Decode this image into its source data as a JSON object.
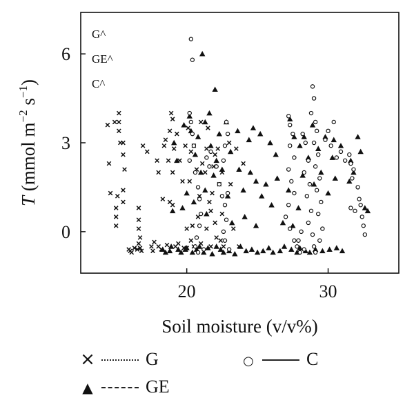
{
  "chart_data": {
    "type": "scatter",
    "xlabel": "Soil moisture (v/v%)",
    "ylabel": "T (mmol m⁻² s⁻¹)",
    "ylabel_italic": "T",
    "ylabel_rest": " (mmol m",
    "ylabel_sup1": "−2",
    "ylabel_mid": " s",
    "ylabel_sup2": "−1",
    "ylabel_end": ")",
    "xlim": [
      12.5,
      35
    ],
    "ylim": [
      -1.4,
      7.4
    ],
    "x_ticks": [
      20,
      30
    ],
    "x_tick_labels": [
      "20",
      "30"
    ],
    "y_ticks": [
      0,
      3,
      6
    ],
    "y_tick_labels": [
      "0",
      "3",
      "6"
    ],
    "grid": false,
    "legend_position": "bottom",
    "annotations": [
      "G^",
      "GE^",
      "C^"
    ],
    "series": [
      {
        "name": "G",
        "marker": "x",
        "line_style": "dotted",
        "points": [
          [
            14.4,
            3.6
          ],
          [
            14.5,
            2.3
          ],
          [
            14.6,
            1.3
          ],
          [
            14.9,
            3.7
          ],
          [
            15.0,
            0.8
          ],
          [
            15.0,
            0.5
          ],
          [
            15.0,
            0.2
          ],
          [
            15.1,
            1.2
          ],
          [
            15.2,
            4.0
          ],
          [
            15.2,
            3.7
          ],
          [
            15.2,
            3.4
          ],
          [
            15.3,
            3.0
          ],
          [
            15.5,
            3.0
          ],
          [
            15.5,
            2.6
          ],
          [
            15.6,
            2.1
          ],
          [
            15.5,
            1.4
          ],
          [
            15.5,
            1.0
          ],
          [
            15.9,
            -0.6
          ],
          [
            16.0,
            -0.65
          ],
          [
            16.1,
            -0.7
          ],
          [
            16.3,
            -0.55
          ],
          [
            16.5,
            -0.6
          ],
          [
            16.6,
            0.8
          ],
          [
            16.6,
            0.4
          ],
          [
            16.6,
            0.1
          ],
          [
            16.7,
            -0.2
          ],
          [
            16.6,
            -0.4
          ],
          [
            16.7,
            -0.55
          ],
          [
            16.8,
            -0.65
          ],
          [
            16.9,
            2.9
          ],
          [
            17.2,
            2.7
          ],
          [
            17.5,
            -0.5
          ],
          [
            17.6,
            -0.65
          ],
          [
            17.7,
            -0.35
          ],
          [
            17.9,
            2.4
          ],
          [
            18.0,
            2.0
          ],
          [
            18.0,
            -0.5
          ],
          [
            18.2,
            -0.6
          ],
          [
            18.3,
            1.1
          ],
          [
            18.4,
            2.9
          ],
          [
            18.5,
            3.1
          ],
          [
            18.6,
            -0.45
          ],
          [
            18.7,
            2.4
          ],
          [
            18.8,
            1.0
          ],
          [
            18.8,
            3.4
          ],
          [
            18.9,
            4.0
          ],
          [
            19.0,
            3.8
          ],
          [
            19.0,
            2.0
          ],
          [
            19.0,
            0.9
          ],
          [
            19.1,
            2.8
          ],
          [
            19.2,
            -0.5
          ],
          [
            19.3,
            3.3
          ],
          [
            19.4,
            -0.4
          ],
          [
            19.5,
            2.4
          ],
          [
            19.7,
            1.7
          ],
          [
            19.8,
            -0.55
          ],
          [
            19.9,
            2.9
          ],
          [
            20.0,
            0.1
          ],
          [
            20.0,
            -0.55
          ],
          [
            20.1,
            3.5
          ],
          [
            20.2,
            1.7
          ],
          [
            20.3,
            2.7
          ],
          [
            20.3,
            -0.3
          ],
          [
            20.4,
            0.2
          ],
          [
            20.5,
            2.9
          ],
          [
            20.5,
            -0.5
          ],
          [
            20.7,
            2.1
          ],
          [
            20.8,
            0.5
          ],
          [
            20.9,
            1.2
          ],
          [
            21.0,
            3.7
          ],
          [
            21.0,
            -0.4
          ],
          [
            21.1,
            2.3
          ],
          [
            21.3,
            2.0
          ],
          [
            21.4,
            2.8
          ],
          [
            21.4,
            0.1
          ],
          [
            21.5,
            3.5
          ],
          [
            21.6,
            1.0
          ],
          [
            21.7,
            0.7
          ],
          [
            21.7,
            -0.5
          ],
          [
            21.8,
            1.3
          ],
          [
            21.9,
            2.2
          ],
          [
            22.0,
            2.6
          ],
          [
            22.0,
            0.3
          ],
          [
            22.1,
            -0.2
          ],
          [
            22.2,
            2.8
          ],
          [
            22.3,
            1.6
          ],
          [
            22.4,
            -0.3
          ],
          [
            22.5,
            2.0
          ],
          [
            22.5,
            0.6
          ],
          [
            22.6,
            -0.5
          ],
          [
            23.0,
            3.0
          ],
          [
            23.1,
            1.6
          ],
          [
            23.3,
            0.1
          ],
          [
            23.5,
            2.8
          ],
          [
            23.7,
            -0.5
          ],
          [
            24.0,
            2.3
          ]
        ]
      },
      {
        "name": "GE",
        "marker": "triangle",
        "line_style": "dashed",
        "points": [
          [
            18.3,
            -0.6
          ],
          [
            18.5,
            -0.7
          ],
          [
            18.8,
            -0.65
          ],
          [
            18.9,
            -0.5
          ],
          [
            19.0,
            0.7
          ],
          [
            19.1,
            3.0
          ],
          [
            19.3,
            2.4
          ],
          [
            19.4,
            -0.6
          ],
          [
            19.6,
            -0.7
          ],
          [
            19.7,
            0.8
          ],
          [
            19.8,
            3.6
          ],
          [
            19.9,
            -0.6
          ],
          [
            20.0,
            1.3
          ],
          [
            20.0,
            -0.55
          ],
          [
            20.2,
            3.9
          ],
          [
            20.3,
            3.4
          ],
          [
            20.4,
            -0.7
          ],
          [
            20.5,
            1.0
          ],
          [
            20.6,
            2.6
          ],
          [
            20.7,
            -0.6
          ],
          [
            20.8,
            3.2
          ],
          [
            20.9,
            -0.5
          ],
          [
            21.0,
            2.0
          ],
          [
            21.1,
            6.0
          ],
          [
            21.2,
            -0.7
          ],
          [
            21.3,
            3.7
          ],
          [
            21.3,
            1.4
          ],
          [
            21.4,
            0.6
          ],
          [
            21.5,
            -0.55
          ],
          [
            21.6,
            4.0
          ],
          [
            21.7,
            2.9
          ],
          [
            21.8,
            -0.75
          ],
          [
            21.9,
            1.9
          ],
          [
            22.0,
            4.8
          ],
          [
            22.1,
            2.4
          ],
          [
            22.1,
            -0.5
          ],
          [
            22.3,
            3.3
          ],
          [
            22.4,
            -0.6
          ],
          [
            22.5,
            2.1
          ],
          [
            22.6,
            -0.7
          ],
          [
            22.8,
            3.7
          ],
          [
            22.9,
            1.2
          ],
          [
            23.0,
            -0.65
          ],
          [
            23.1,
            2.7
          ],
          [
            23.2,
            0.3
          ],
          [
            23.4,
            -0.75
          ],
          [
            23.6,
            3.4
          ],
          [
            23.7,
            2.1
          ],
          [
            23.8,
            -0.5
          ],
          [
            24.0,
            1.4
          ],
          [
            24.1,
            0.5
          ],
          [
            24.2,
            -0.65
          ],
          [
            24.4,
            3.1
          ],
          [
            24.5,
            2.0
          ],
          [
            24.6,
            -0.6
          ],
          [
            24.7,
            3.5
          ],
          [
            24.9,
            1.7
          ],
          [
            24.9,
            0.2
          ],
          [
            25.0,
            -0.7
          ],
          [
            25.2,
            3.3
          ],
          [
            25.3,
            1.2
          ],
          [
            25.4,
            -0.65
          ],
          [
            25.6,
            1.6
          ],
          [
            25.8,
            -0.55
          ],
          [
            25.9,
            3.0
          ],
          [
            26.0,
            0.9
          ],
          [
            26.1,
            -0.7
          ],
          [
            26.3,
            2.6
          ],
          [
            26.4,
            1.8
          ],
          [
            26.6,
            -0.65
          ],
          [
            26.8,
            0.3
          ],
          [
            26.9,
            -0.5
          ],
          [
            27.2,
            1.4
          ],
          [
            27.3,
            3.8
          ],
          [
            27.4,
            -0.6
          ],
          [
            27.5,
            0.2
          ],
          [
            27.6,
            3.2
          ],
          [
            27.8,
            -0.7
          ],
          [
            27.9,
            0.8
          ],
          [
            28.0,
            2.9
          ],
          [
            28.0,
            -0.55
          ],
          [
            28.2,
            1.9
          ],
          [
            28.3,
            3.2
          ],
          [
            28.4,
            -0.65
          ],
          [
            28.6,
            2.5
          ],
          [
            28.7,
            -0.7
          ],
          [
            28.9,
            3.6
          ],
          [
            29.0,
            1.6
          ],
          [
            29.1,
            -0.6
          ],
          [
            29.3,
            2.8
          ],
          [
            29.5,
            2.0
          ],
          [
            29.6,
            -0.65
          ],
          [
            29.8,
            3.2
          ],
          [
            30.0,
            1.3
          ],
          [
            30.1,
            -0.6
          ],
          [
            30.3,
            2.5
          ],
          [
            30.4,
            3.1
          ],
          [
            30.5,
            1.8
          ],
          [
            30.6,
            -0.55
          ],
          [
            30.9,
            2.9
          ],
          [
            31.0,
            -0.65
          ],
          [
            31.5,
            1.7
          ],
          [
            31.6,
            2.4
          ],
          [
            31.8,
            2.0
          ],
          [
            32.1,
            3.2
          ],
          [
            32.3,
            2.7
          ],
          [
            32.6,
            0.8
          ],
          [
            32.8,
            0.7
          ]
        ]
      },
      {
        "name": "C",
        "marker": "circle",
        "line_style": "solid",
        "points": [
          [
            20.3,
            6.5
          ],
          [
            20.4,
            5.8
          ],
          [
            20.2,
            4.0
          ],
          [
            20.3,
            3.7
          ],
          [
            20.4,
            3.3
          ],
          [
            20.5,
            2.9
          ],
          [
            20.2,
            2.4
          ],
          [
            20.6,
            2.0
          ],
          [
            20.8,
            1.5
          ],
          [
            20.9,
            1.1
          ],
          [
            21.0,
            0.6
          ],
          [
            20.9,
            0.2
          ],
          [
            20.7,
            -0.2
          ],
          [
            20.6,
            -0.5
          ],
          [
            20.8,
            -0.7
          ],
          [
            21.2,
            -0.6
          ],
          [
            21.4,
            2.5
          ],
          [
            21.6,
            2.2
          ],
          [
            21.7,
            2.7
          ],
          [
            22.1,
            2.2
          ],
          [
            22.3,
            1.6
          ],
          [
            22.5,
            1.2
          ],
          [
            22.8,
            3.7
          ],
          [
            22.9,
            3.3
          ],
          [
            22.7,
            2.9
          ],
          [
            22.6,
            2.4
          ],
          [
            22.9,
            1.3
          ],
          [
            22.7,
            0.9
          ],
          [
            22.8,
            0.4
          ],
          [
            22.6,
            0.0
          ],
          [
            22.7,
            -0.3
          ],
          [
            23.0,
            -0.6
          ],
          [
            27.2,
            3.9
          ],
          [
            27.3,
            3.6
          ],
          [
            27.5,
            3.3
          ],
          [
            27.3,
            2.9
          ],
          [
            27.6,
            2.5
          ],
          [
            27.2,
            2.1
          ],
          [
            27.4,
            1.7
          ],
          [
            27.6,
            1.3
          ],
          [
            27.2,
            0.9
          ],
          [
            27.0,
            0.5
          ],
          [
            27.3,
            0.1
          ],
          [
            27.6,
            -0.3
          ],
          [
            27.8,
            -0.5
          ],
          [
            28.0,
            -0.7
          ],
          [
            28.2,
            3.3
          ],
          [
            28.4,
            3.0
          ],
          [
            28.6,
            2.4
          ],
          [
            28.3,
            2.0
          ],
          [
            28.7,
            1.6
          ],
          [
            28.5,
            1.2
          ],
          [
            28.8,
            0.7
          ],
          [
            28.6,
            0.3
          ],
          [
            28.9,
            -0.1
          ],
          [
            29.0,
            -0.5
          ],
          [
            28.9,
            4.9
          ],
          [
            29.0,
            4.5
          ],
          [
            28.8,
            4.0
          ],
          [
            29.1,
            3.7
          ],
          [
            29.2,
            3.4
          ],
          [
            29.0,
            3.0
          ],
          [
            29.3,
            2.6
          ],
          [
            29.1,
            2.2
          ],
          [
            29.4,
            1.8
          ],
          [
            29.2,
            1.4
          ],
          [
            29.5,
            1.0
          ],
          [
            29.3,
            0.6
          ],
          [
            29.6,
            0.1
          ],
          [
            29.4,
            -0.3
          ],
          [
            29.1,
            -0.7
          ],
          [
            29.8,
            3.1
          ],
          [
            30.0,
            3.4
          ],
          [
            30.2,
            2.9
          ],
          [
            30.4,
            3.7
          ],
          [
            30.6,
            2.5
          ],
          [
            30.9,
            2.7
          ],
          [
            31.2,
            2.4
          ],
          [
            31.5,
            2.6
          ],
          [
            31.6,
            2.3
          ],
          [
            31.7,
            1.8
          ],
          [
            31.8,
            2.1
          ],
          [
            31.6,
            0.8
          ],
          [
            31.9,
            0.7
          ],
          [
            32.1,
            1.5
          ],
          [
            32.2,
            1.1
          ],
          [
            32.3,
            0.9
          ],
          [
            32.4,
            0.5
          ],
          [
            32.5,
            0.2
          ],
          [
            32.6,
            -0.1
          ],
          [
            28.1,
            0.0
          ],
          [
            27.9,
            -0.3
          ],
          [
            28.3,
            -0.6
          ]
        ]
      }
    ]
  },
  "legend": {
    "items": [
      {
        "symbol": "×",
        "line": "dotted",
        "label": "G"
      },
      {
        "symbol": "○",
        "line": "solid",
        "label": "C"
      },
      {
        "symbol": "▲",
        "line": "dashed",
        "label": "GE"
      }
    ]
  }
}
